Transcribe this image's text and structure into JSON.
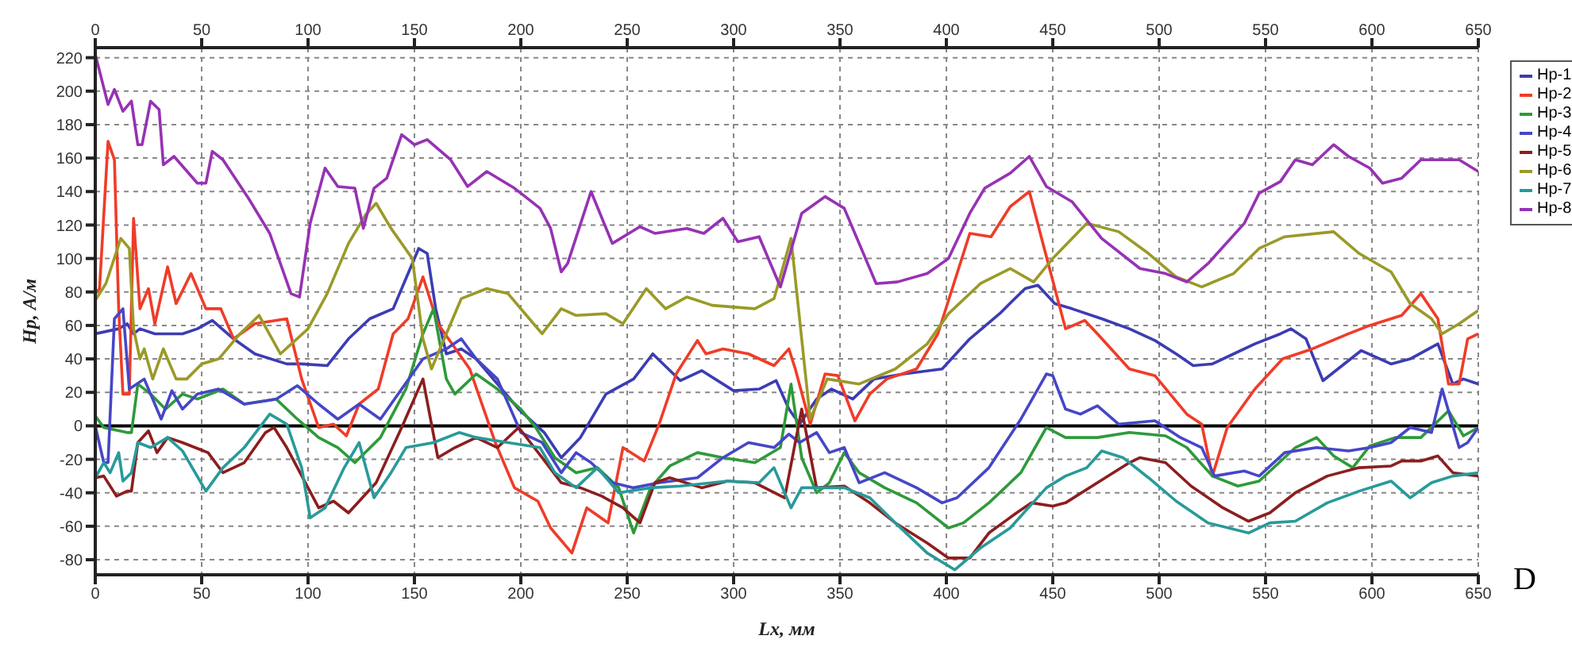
{
  "chart_data": {
    "type": "line",
    "xlabel": "Lx, мм",
    "ylabel": "Нр, А/м",
    "annotations": [
      "D"
    ],
    "xlim": [
      0,
      650
    ],
    "xticks": [
      0,
      50,
      100,
      150,
      200,
      250,
      300,
      350,
      400,
      450,
      500,
      550,
      600,
      650
    ],
    "x2lim": [
      0,
      650
    ],
    "x2ticks": [
      0,
      50,
      100,
      150,
      200,
      250,
      300,
      350,
      400,
      450,
      500,
      550,
      600,
      650
    ],
    "ylim": [
      -89,
      226
    ],
    "yticks": [
      -80,
      -60,
      -40,
      -20,
      0,
      20,
      40,
      60,
      80,
      100,
      120,
      140,
      160,
      180,
      200,
      220
    ],
    "grid": true,
    "legend": "top right",
    "marker": "none",
    "line_style": "solid",
    "ref_lines": [
      {
        "axis": "y",
        "value": 0,
        "color": "#000000"
      }
    ],
    "series": [
      {
        "name": "Нр-1",
        "color": "#3c3cb4",
        "x": [
          0,
          11,
          15,
          18,
          21,
          28,
          41,
          48,
          55,
          65,
          75,
          90,
          97,
          109,
          119,
          129,
          140,
          152,
          156,
          160,
          165,
          172,
          179,
          189,
          199,
          211,
          219,
          228,
          240,
          253,
          262,
          275,
          285,
          300,
          312,
          320,
          326,
          331,
          339,
          346,
          356,
          366,
          380,
          398,
          411,
          425,
          437,
          443,
          451,
          459,
          473,
          486,
          498,
          508,
          516,
          525,
          535,
          545,
          557,
          562,
          569,
          577,
          584,
          595,
          609,
          618,
          631,
          638,
          643,
          650
        ],
        "values": [
          55,
          58,
          61,
          55,
          58,
          55,
          55,
          58,
          63,
          52,
          43,
          37,
          37,
          36,
          52,
          64,
          70,
          106,
          103,
          70,
          43,
          46,
          40,
          25,
          10,
          -4,
          -19,
          -7,
          19,
          28,
          43,
          27,
          33,
          21,
          22,
          27,
          10,
          1,
          16,
          22,
          16,
          28,
          31,
          34,
          52,
          67,
          82,
          84,
          73,
          70,
          64,
          58,
          51,
          43,
          36,
          37,
          43,
          49,
          55,
          58,
          52,
          27,
          34,
          45,
          37,
          40,
          49,
          25,
          28,
          25
        ]
      },
      {
        "name": "Нр-2",
        "color": "#f03c28",
        "x": [
          0,
          2,
          6,
          9,
          11,
          13,
          16,
          18,
          21,
          25,
          28,
          34,
          38,
          45,
          52,
          59,
          65,
          75,
          90,
          97,
          105,
          112,
          118,
          124,
          133,
          140,
          147,
          154,
          161,
          176,
          188,
          197,
          208,
          214,
          224,
          231,
          241,
          248,
          258,
          265,
          273,
          283,
          287,
          295,
          307,
          319,
          326,
          329,
          336,
          343,
          349,
          357,
          364,
          372,
          386,
          396,
          411,
          421,
          430,
          439,
          446,
          456,
          465,
          471,
          486,
          498,
          513,
          520,
          525,
          532,
          545,
          558,
          572,
          589,
          599,
          614,
          623,
          631,
          636,
          641,
          645,
          650
        ],
        "values": [
          79,
          82,
          170,
          159,
          70,
          19,
          19,
          124,
          70,
          82,
          61,
          95,
          73,
          91,
          70,
          70,
          52,
          61,
          64,
          28,
          -1,
          1,
          -6,
          13,
          22,
          55,
          64,
          89,
          61,
          34,
          -10,
          -37,
          -45,
          -61,
          -76,
          -49,
          -58,
          -13,
          -21,
          1,
          31,
          51,
          43,
          46,
          43,
          36,
          46,
          34,
          1,
          31,
          30,
          3,
          19,
          28,
          34,
          55,
          115,
          113,
          131,
          140,
          106,
          58,
          63,
          55,
          34,
          30,
          7,
          1,
          -30,
          -1,
          22,
          40,
          46,
          55,
          60,
          66,
          79,
          64,
          25,
          25,
          52,
          55
        ]
      },
      {
        "name": "Нр-3",
        "color": "#2e9a3a",
        "x": [
          0,
          4,
          15,
          17,
          20,
          26,
          33,
          41,
          48,
          60,
          70,
          85,
          95,
          105,
          114,
          122,
          134,
          141,
          146,
          154,
          159,
          165,
          169,
          179,
          189,
          200,
          207,
          216,
          226,
          236,
          246,
          253,
          261,
          270,
          283,
          295,
          310,
          322,
          327,
          332,
          339,
          345,
          352,
          359,
          371,
          386,
          401,
          408,
          420,
          435,
          447,
          456,
          471,
          486,
          503,
          513,
          525,
          537,
          547,
          564,
          574,
          582,
          591,
          599,
          611,
          623,
          636,
          643,
          650
        ],
        "values": [
          6,
          -1,
          -4,
          -4,
          25,
          19,
          10,
          19,
          16,
          22,
          13,
          16,
          4,
          -7,
          -13,
          -22,
          -7,
          10,
          22,
          55,
          70,
          28,
          19,
          31,
          22,
          10,
          -1,
          -19,
          -28,
          -25,
          -37,
          -64,
          -37,
          -24,
          -16,
          -19,
          -22,
          -13,
          25,
          -19,
          -40,
          -34,
          -16,
          -28,
          -37,
          -46,
          -61,
          -58,
          -46,
          -28,
          -1,
          -7,
          -7,
          -4,
          -6,
          -13,
          -30,
          -36,
          -33,
          -13,
          -7,
          -18,
          -25,
          -12,
          -7,
          -7,
          9,
          -6,
          -1
        ]
      },
      {
        "name": "Нр-4",
        "color": "#4646c8",
        "x": [
          0,
          4,
          6,
          9,
          13,
          16,
          23,
          31,
          36,
          41,
          48,
          58,
          70,
          85,
          95,
          105,
          114,
          124,
          134,
          144,
          154,
          165,
          172,
          179,
          189,
          200,
          210,
          219,
          226,
          233,
          243,
          253,
          265,
          283,
          295,
          307,
          319,
          326,
          331,
          339,
          345,
          352,
          359,
          371,
          386,
          398,
          405,
          420,
          435,
          447,
          450,
          456,
          463,
          471,
          481,
          498,
          510,
          520,
          526,
          540,
          547,
          559,
          574,
          589,
          599,
          609,
          618,
          628,
          633,
          641,
          645,
          650
        ],
        "values": [
          0,
          -22,
          -22,
          64,
          70,
          22,
          28,
          4,
          21,
          10,
          19,
          22,
          13,
          16,
          24,
          13,
          4,
          13,
          4,
          22,
          40,
          46,
          52,
          40,
          28,
          -4,
          -10,
          -28,
          -16,
          -22,
          -34,
          -37,
          -34,
          -31,
          -19,
          -10,
          -13,
          -5,
          -10,
          -4,
          -16,
          -13,
          -34,
          -28,
          -37,
          -46,
          -43,
          -25,
          4,
          31,
          30,
          10,
          7,
          12,
          1,
          3,
          -7,
          -13,
          -30,
          -27,
          -30,
          -16,
          -13,
          -15,
          -13,
          -10,
          -1,
          -4,
          22,
          -13,
          -10,
          -1
        ]
      },
      {
        "name": "Нр-5",
        "color": "#8c1e1e",
        "x": [
          0,
          4,
          10,
          15,
          17,
          20,
          25,
          29,
          34,
          41,
          53,
          60,
          70,
          80,
          84,
          90,
          100,
          105,
          112,
          119,
          132,
          144,
          154,
          161,
          169,
          179,
          189,
          199,
          210,
          219,
          228,
          238,
          248,
          256,
          263,
          270,
          285,
          297,
          310,
          324,
          332,
          339,
          352,
          364,
          376,
          391,
          401,
          411,
          420,
          433,
          440,
          450,
          456,
          471,
          486,
          491,
          503,
          515,
          530,
          542,
          552,
          564,
          579,
          594,
          609,
          614,
          623,
          631,
          638,
          650
        ],
        "values": [
          -31,
          -30,
          -42,
          -39,
          -39,
          -10,
          -3,
          -16,
          -7,
          -10,
          -16,
          -28,
          -22,
          -4,
          -1,
          -13,
          -37,
          -49,
          -45,
          -52,
          -34,
          -1,
          28,
          -19,
          -13,
          -7,
          -13,
          -1,
          -19,
          -34,
          -37,
          -42,
          -49,
          -58,
          -34,
          -31,
          -37,
          -33,
          -34,
          -43,
          10,
          -37,
          -36,
          -46,
          -58,
          -70,
          -79,
          -79,
          -64,
          -52,
          -46,
          -48,
          -46,
          -34,
          -22,
          -19,
          -22,
          -36,
          -49,
          -57,
          -52,
          -40,
          -30,
          -25,
          -24,
          -21,
          -21,
          -18,
          -28,
          -30
        ]
      },
      {
        "name": "Нр-6",
        "color": "#9a9a28",
        "x": [
          0,
          5,
          12,
          16,
          18,
          21,
          23,
          27,
          32,
          38,
          43,
          50,
          58,
          68,
          77,
          87,
          100,
          109,
          119,
          127,
          132,
          139,
          149,
          154,
          158,
          165,
          172,
          184,
          194,
          204,
          210,
          219,
          226,
          240,
          248,
          259,
          268,
          278,
          290,
          310,
          319,
          327,
          336,
          344,
          359,
          376,
          391,
          401,
          416,
          430,
          441,
          450,
          466,
          481,
          495,
          508,
          520,
          535,
          547,
          559,
          582,
          594,
          609,
          618,
          628,
          633,
          641,
          650
        ],
        "values": [
          75,
          85,
          112,
          106,
          58,
          40,
          46,
          28,
          46,
          28,
          28,
          37,
          40,
          55,
          66,
          43,
          58,
          79,
          109,
          126,
          133,
          118,
          100,
          52,
          34,
          55,
          76,
          82,
          79,
          64,
          55,
          70,
          66,
          67,
          61,
          82,
          70,
          77,
          72,
          70,
          76,
          112,
          4,
          28,
          25,
          34,
          49,
          67,
          85,
          94,
          86,
          100,
          121,
          116,
          103,
          89,
          83,
          91,
          106,
          113,
          116,
          103,
          92,
          73,
          64,
          55,
          61,
          69
        ]
      },
      {
        "name": "Нр-7",
        "color": "#289a9a",
        "x": [
          0,
          4,
          7,
          11,
          13,
          17,
          20,
          26,
          34,
          41,
          52,
          60,
          70,
          82,
          90,
          97,
          101,
          108,
          117,
          124,
          131,
          139,
          146,
          159,
          171,
          179,
          194,
          209,
          216,
          226,
          236,
          246,
          261,
          275,
          297,
          312,
          319,
          327,
          332,
          352,
          364,
          376,
          391,
          404,
          416,
          430,
          447,
          456,
          466,
          473,
          483,
          495,
          508,
          523,
          542,
          552,
          564,
          579,
          594,
          609,
          618,
          628,
          638,
          650
        ],
        "values": [
          -31,
          -22,
          -28,
          -16,
          -33,
          -28,
          -10,
          -13,
          -7,
          -15,
          -39,
          -25,
          -13,
          7,
          1,
          -25,
          -55,
          -49,
          -25,
          -10,
          -43,
          -28,
          -13,
          -10,
          -4,
          -7,
          -10,
          -13,
          -28,
          -37,
          -25,
          -40,
          -37,
          -36,
          -33,
          -34,
          -25,
          -49,
          -37,
          -37,
          -43,
          -58,
          -76,
          -86,
          -73,
          -61,
          -37,
          -30,
          -25,
          -15,
          -19,
          -31,
          -45,
          -58,
          -64,
          -58,
          -57,
          -46,
          -39,
          -33,
          -43,
          -34,
          -30,
          -28
        ]
      },
      {
        "name": "Нр-8",
        "color": "#9632b4",
        "x": [
          0,
          6,
          9,
          13,
          17,
          20,
          22,
          26,
          30,
          32,
          37,
          48,
          52,
          55,
          60,
          72,
          82,
          92,
          96,
          101,
          108,
          114,
          122,
          126,
          131,
          137,
          144,
          150,
          156,
          167,
          175,
          184,
          197,
          205,
          209,
          214,
          219,
          222,
          233,
          243,
          256,
          263,
          278,
          286,
          295,
          302,
          312,
          322,
          332,
          343,
          352,
          367,
          377,
          391,
          401,
          411,
          418,
          430,
          439,
          447,
          459,
          473,
          491,
          503,
          513,
          523,
          540,
          547,
          557,
          564,
          572,
          582,
          589,
          599,
          605,
          614,
          623,
          636,
          641,
          650
        ],
        "values": [
          222,
          192,
          201,
          188,
          194,
          168,
          168,
          194,
          189,
          156,
          161,
          145,
          145,
          164,
          159,
          136,
          115,
          79,
          77,
          121,
          154,
          143,
          142,
          118,
          142,
          148,
          174,
          168,
          171,
          159,
          143,
          152,
          142,
          134,
          130,
          118,
          92,
          97,
          140,
          109,
          119,
          115,
          118,
          115,
          124,
          110,
          113,
          83,
          127,
          137,
          130,
          85,
          86,
          91,
          100,
          127,
          142,
          151,
          161,
          143,
          134,
          112,
          94,
          91,
          86,
          97,
          121,
          139,
          146,
          159,
          156,
          168,
          161,
          154,
          145,
          148,
          159,
          159,
          159,
          152
        ]
      }
    ]
  }
}
